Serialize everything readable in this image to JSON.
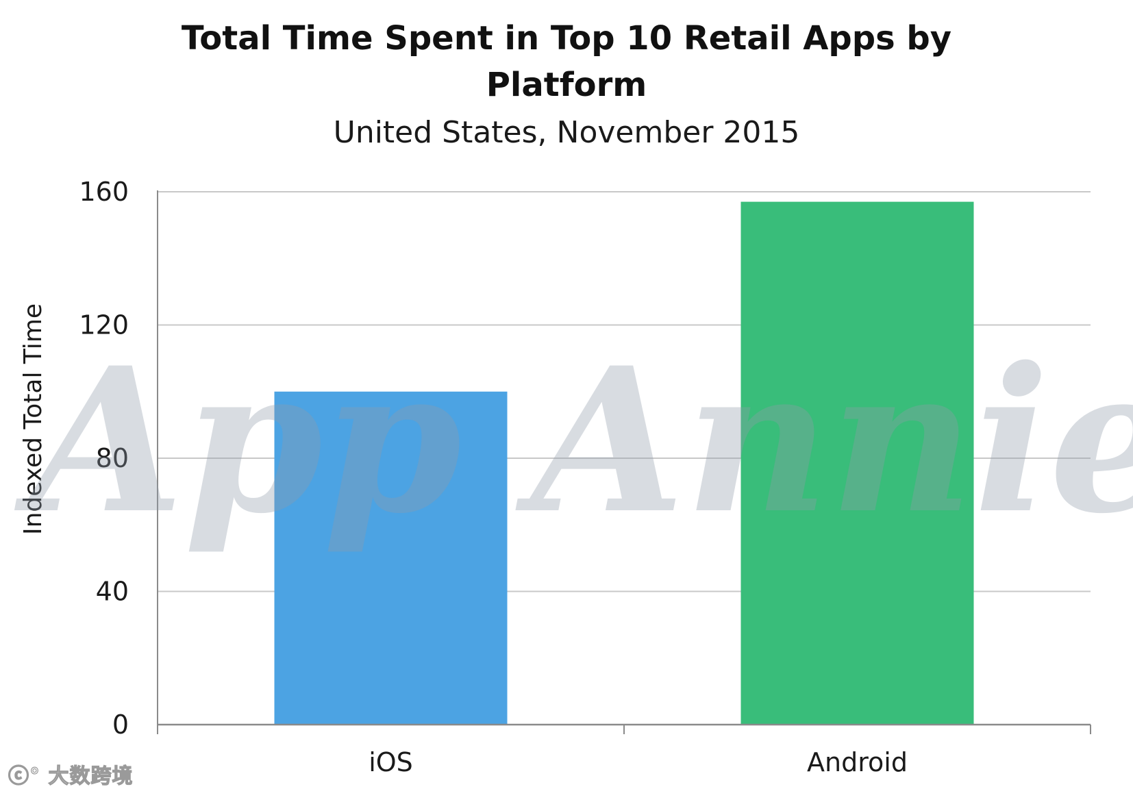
{
  "chart_data": {
    "type": "bar",
    "title_lines": [
      "Total Time Spent in Top 10 Retail Apps by",
      "Platform"
    ],
    "subtitle": "United States, November 2015",
    "categories": [
      "iOS",
      "Android"
    ],
    "values": [
      100,
      157
    ],
    "colors": [
      "#4ca3e3",
      "#39bd7a"
    ],
    "xlabel": "",
    "ylabel": "Indexed Total Time",
    "ylim": [
      0,
      160
    ],
    "yticks": [
      0,
      40,
      80,
      120,
      160
    ],
    "grid": true,
    "legend": "none"
  },
  "watermark": {
    "text": "App Annie"
  },
  "corner_logo": {
    "text": "大数跨境"
  }
}
